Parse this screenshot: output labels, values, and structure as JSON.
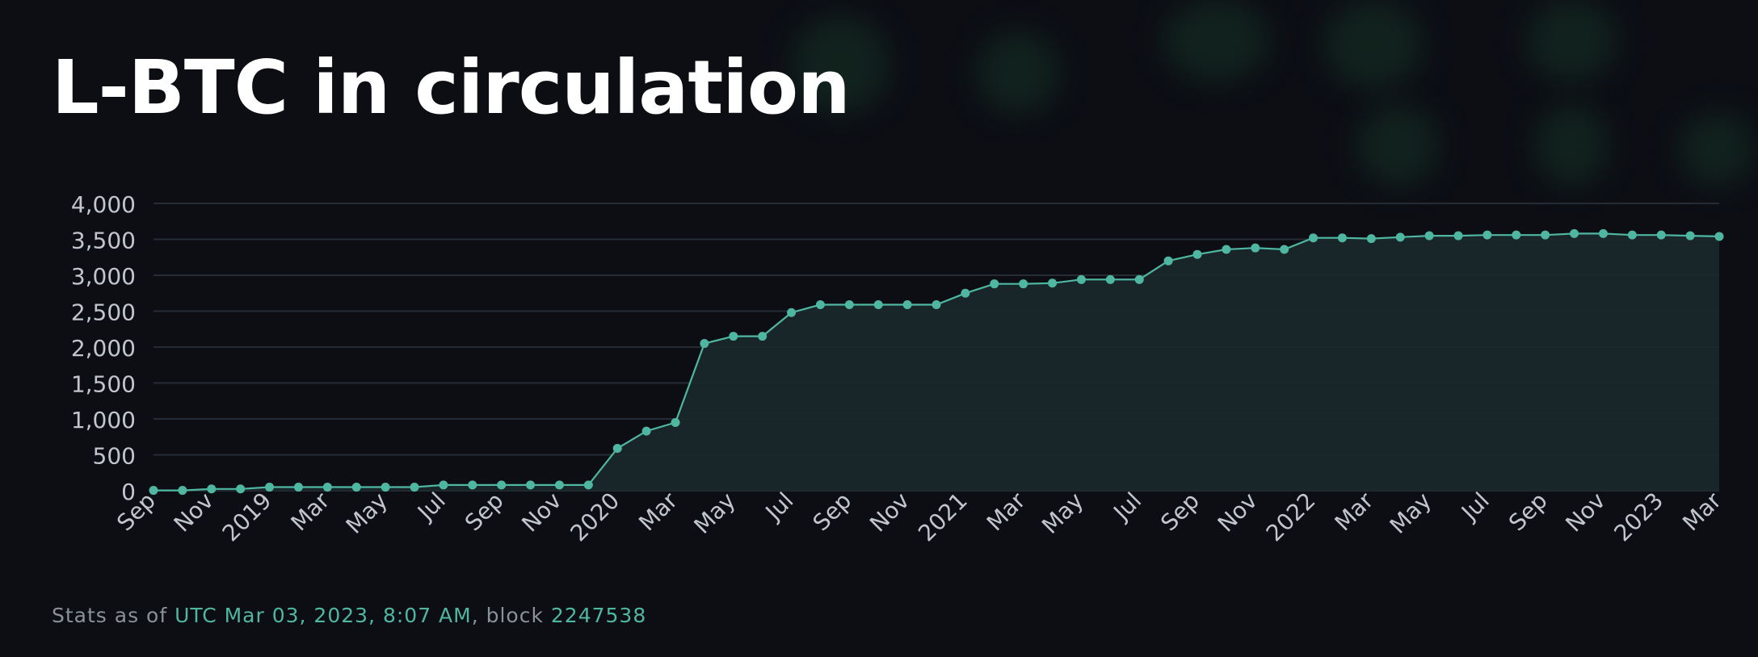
{
  "page": {
    "title": "L-BTC in circulation",
    "footer": {
      "prefix": "Stats as of ",
      "timestamp": "UTC Mar 03, 2023, 8:07 AM",
      "separator": ", block ",
      "block": "2247538"
    }
  },
  "colors": {
    "background": "#0c0e14",
    "line": "#4fb7a1",
    "area_fill": "#19282a",
    "grid": "#262c36",
    "axis_text": "#c2c6cc",
    "accent_text": "#4fb7a1"
  },
  "chart_data": {
    "type": "area",
    "title": "L-BTC in circulation",
    "xlabel": "",
    "ylabel": "",
    "ylim": [
      0,
      4000
    ],
    "yticks": [
      "0",
      "500",
      "1,000",
      "1,500",
      "2,000",
      "2,500",
      "3,000",
      "3,500",
      "4,000"
    ],
    "xticks": [
      "Sep",
      "Nov",
      "2019",
      "Mar",
      "May",
      "Jul",
      "Sep",
      "Nov",
      "2020",
      "Mar",
      "May",
      "Jul",
      "Sep",
      "Nov",
      "2021",
      "Mar",
      "May",
      "Jul",
      "Sep",
      "Nov",
      "2022",
      "Mar",
      "May",
      "Jul",
      "Sep",
      "Nov",
      "2023",
      "Mar"
    ],
    "x_range": [
      "2018-09",
      "2023-03"
    ],
    "grid": true,
    "markers": true,
    "series": [
      {
        "x": [
          "2018-09",
          "2018-10",
          "2018-11",
          "2018-12",
          "2019-01",
          "2019-02",
          "2019-03",
          "2019-04",
          "2019-05",
          "2019-06",
          "2019-07",
          "2019-08",
          "2019-09",
          "2019-10",
          "2019-11",
          "2019-12",
          "2020-01",
          "2020-02",
          "2020-03",
          "2020-04",
          "2020-05",
          "2020-06",
          "2020-07",
          "2020-08",
          "2020-09",
          "2020-10",
          "2020-11",
          "2020-12",
          "2021-01",
          "2021-02",
          "2021-03",
          "2021-04",
          "2021-05",
          "2021-06",
          "2021-07",
          "2021-08",
          "2021-09",
          "2021-10",
          "2021-11",
          "2021-12",
          "2022-01",
          "2022-02",
          "2022-03",
          "2022-04",
          "2022-05",
          "2022-06",
          "2022-07",
          "2022-08",
          "2022-09",
          "2022-10",
          "2022-11",
          "2022-12",
          "2023-01",
          "2023-02",
          "2023-03"
        ],
        "values": [
          5,
          5,
          25,
          25,
          50,
          50,
          50,
          50,
          50,
          50,
          80,
          80,
          80,
          80,
          80,
          80,
          590,
          830,
          950,
          2050,
          2150,
          2150,
          2480,
          2590,
          2590,
          2590,
          2590,
          2590,
          2750,
          2880,
          2880,
          2890,
          2940,
          2940,
          2940,
          3200,
          3290,
          3360,
          3380,
          3360,
          3520,
          3520,
          3510,
          3530,
          3550,
          3550,
          3560,
          3560,
          3560,
          3580,
          3580,
          3560,
          3560,
          3550,
          3540
        ]
      }
    ]
  }
}
